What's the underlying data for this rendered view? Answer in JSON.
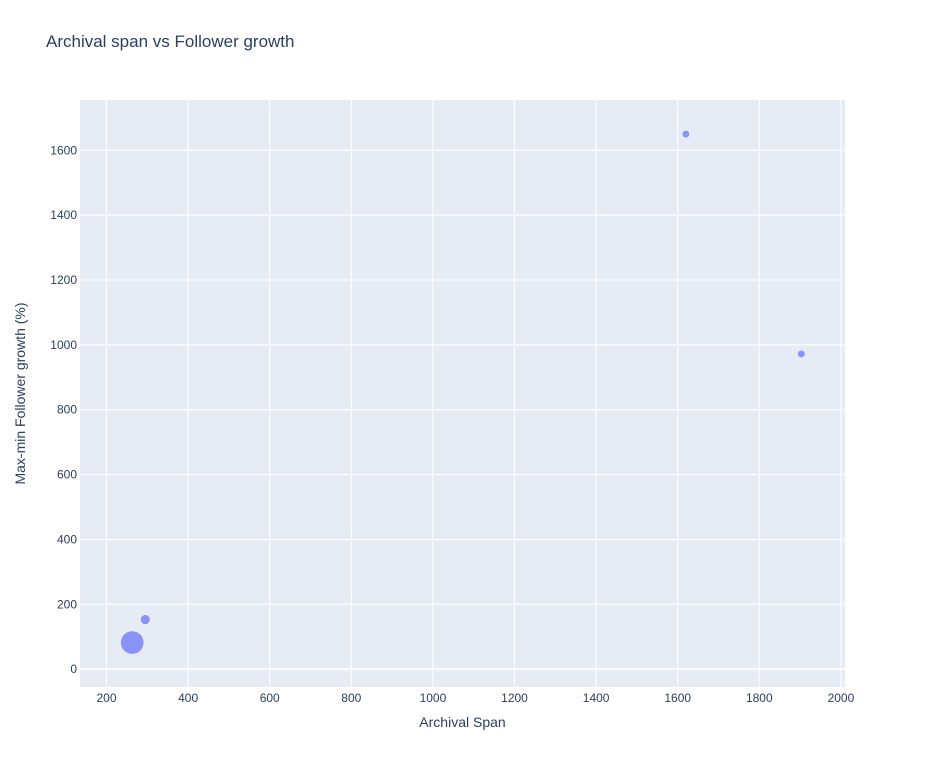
{
  "chart_data": {
    "type": "scatter",
    "title": "Archival span vs Follower growth",
    "xlabel": "Archival Span",
    "ylabel": "Max-min Follower growth (%)",
    "xlim": [
      135,
      2010
    ],
    "ylim": [
      -55,
      1755
    ],
    "x_ticks": [
      200,
      400,
      600,
      800,
      1000,
      1200,
      1400,
      1600,
      1800,
      2000
    ],
    "y_ticks": [
      0,
      200,
      400,
      600,
      800,
      1000,
      1200,
      1400,
      1600
    ],
    "grid": true,
    "marker_color": "#636efa",
    "plot_background": "#e5ecf6",
    "points": [
      {
        "x": 263,
        "y": 82,
        "size": 5.0
      },
      {
        "x": 295,
        "y": 153,
        "size": 1.7
      },
      {
        "x": 1620,
        "y": 1650,
        "size": 1.0
      },
      {
        "x": 1903,
        "y": 972,
        "size": 1.0
      }
    ]
  }
}
